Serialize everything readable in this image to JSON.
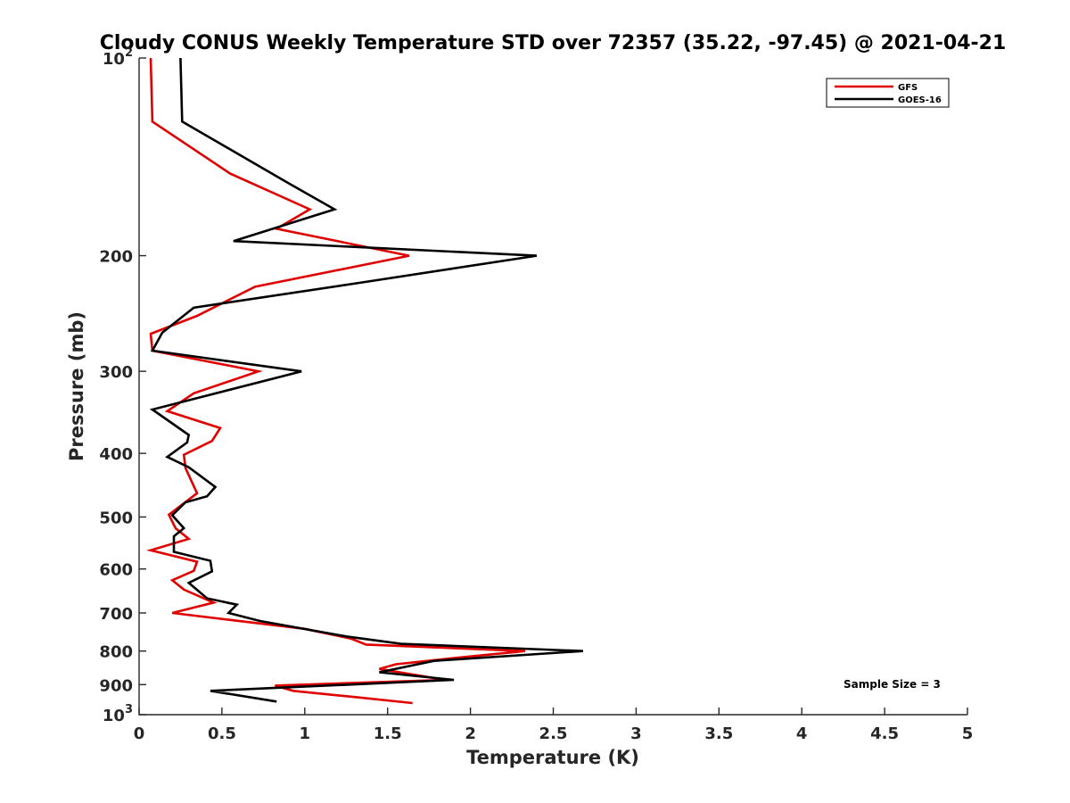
{
  "chart_data": {
    "type": "line",
    "title": "Cloudy CONUS Weekly Temperature STD over 72357 (35.22, -97.45) @ 2021-04-21",
    "xlabel": "Temperature (K)",
    "ylabel": "Pressure (mb)",
    "xlim": [
      0,
      5
    ],
    "ylim": [
      100,
      1000
    ],
    "y_scale": "log",
    "y_reversed": true,
    "grid": false,
    "legend_position": "top-right",
    "x_ticks": [
      {
        "value": 0,
        "label": "0"
      },
      {
        "value": 0.5,
        "label": "0.5"
      },
      {
        "value": 1,
        "label": "1"
      },
      {
        "value": 1.5,
        "label": "1.5"
      },
      {
        "value": 2,
        "label": "2"
      },
      {
        "value": 2.5,
        "label": "2.5"
      },
      {
        "value": 3,
        "label": "3"
      },
      {
        "value": 3.5,
        "label": "3.5"
      },
      {
        "value": 4,
        "label": "4"
      },
      {
        "value": 4.5,
        "label": "4.5"
      },
      {
        "value": 5,
        "label": "5"
      }
    ],
    "y_ticks": [
      {
        "value": 100,
        "base": "10",
        "exp": "2"
      },
      {
        "value": 200,
        "label": "200"
      },
      {
        "value": 300,
        "label": "300"
      },
      {
        "value": 400,
        "label": "400"
      },
      {
        "value": 500,
        "label": "500"
      },
      {
        "value": 600,
        "label": "600"
      },
      {
        "value": 700,
        "label": "700"
      },
      {
        "value": 800,
        "label": "800"
      },
      {
        "value": 900,
        "label": "900"
      },
      {
        "value": 1000,
        "base": "10",
        "exp": "3"
      }
    ],
    "annotation": "Sample Size = 3",
    "series": [
      {
        "name": "GFS",
        "color": "#e00000",
        "points": [
          [
            0.07,
            100
          ],
          [
            0.08,
            125
          ],
          [
            0.55,
            150
          ],
          [
            1.03,
            170
          ],
          [
            0.83,
            182
          ],
          [
            1.63,
            200
          ],
          [
            0.7,
            223
          ],
          [
            0.35,
            247
          ],
          [
            0.07,
            263
          ],
          [
            0.08,
            279
          ],
          [
            0.72,
            300
          ],
          [
            0.33,
            324
          ],
          [
            0.17,
            345
          ],
          [
            0.49,
            366
          ],
          [
            0.44,
            383
          ],
          [
            0.27,
            402
          ],
          [
            0.28,
            421
          ],
          [
            0.35,
            460
          ],
          [
            0.18,
            496
          ],
          [
            0.22,
            520
          ],
          [
            0.3,
            540
          ],
          [
            0.07,
            562
          ],
          [
            0.35,
            585
          ],
          [
            0.33,
            604
          ],
          [
            0.2,
            624
          ],
          [
            0.27,
            645
          ],
          [
            0.45,
            675
          ],
          [
            0.2,
            700
          ],
          [
            1.0,
            740
          ],
          [
            1.28,
            766
          ],
          [
            1.37,
            782
          ],
          [
            2.33,
            800
          ],
          [
            1.9,
            820
          ],
          [
            1.55,
            838
          ],
          [
            1.45,
            852
          ],
          [
            1.85,
            885
          ],
          [
            0.82,
            903
          ],
          [
            0.93,
            920
          ],
          [
            1.3,
            940
          ],
          [
            1.65,
            960
          ]
        ]
      },
      {
        "name": "GOES-16",
        "color": "#000000",
        "points": [
          [
            0.25,
            100
          ],
          [
            0.26,
            125
          ],
          [
            0.9,
            155
          ],
          [
            1.18,
            170
          ],
          [
            0.57,
            190
          ],
          [
            2.4,
            200
          ],
          [
            1.33,
            220
          ],
          [
            0.33,
            240
          ],
          [
            0.14,
            262
          ],
          [
            0.08,
            279
          ],
          [
            0.98,
            300
          ],
          [
            0.08,
            343
          ],
          [
            0.3,
            375
          ],
          [
            0.29,
            385
          ],
          [
            0.17,
            405
          ],
          [
            0.3,
            420
          ],
          [
            0.46,
            450
          ],
          [
            0.41,
            465
          ],
          [
            0.28,
            475
          ],
          [
            0.2,
            497
          ],
          [
            0.27,
            520
          ],
          [
            0.21,
            535
          ],
          [
            0.21,
            565
          ],
          [
            0.43,
            583
          ],
          [
            0.44,
            605
          ],
          [
            0.3,
            630
          ],
          [
            0.41,
            665
          ],
          [
            0.59,
            680
          ],
          [
            0.54,
            700
          ],
          [
            0.73,
            720
          ],
          [
            1.25,
            760
          ],
          [
            1.58,
            780
          ],
          [
            2.68,
            800
          ],
          [
            1.78,
            828
          ],
          [
            1.45,
            862
          ],
          [
            1.9,
            885
          ],
          [
            0.43,
            920
          ],
          [
            0.83,
            955
          ]
        ]
      }
    ]
  }
}
